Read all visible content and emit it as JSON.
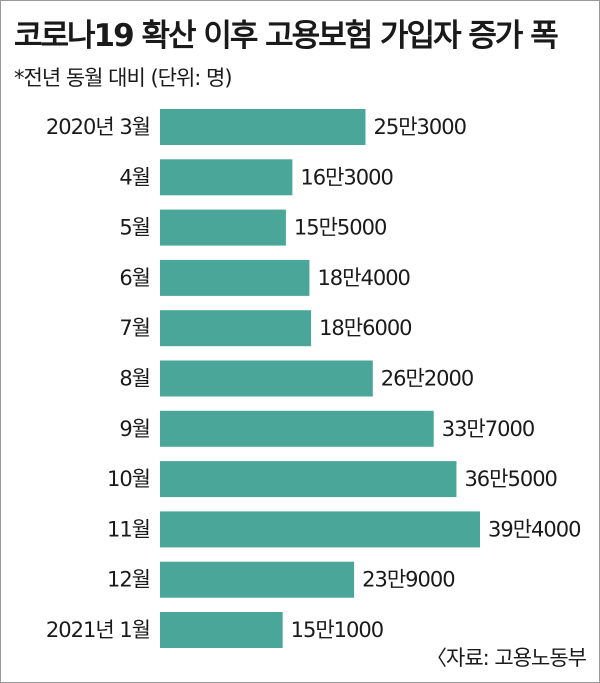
{
  "header": {
    "title": "코로나19 확산 이후 고용보험 가입자 증가 폭",
    "subtitle": "*전년 동월 대비 (단위: 명)",
    "source": "〈자료: 고용노동부"
  },
  "colors": {
    "bar": "#4aa698",
    "text": "#1a1a1a",
    "border": "#9a9a9a"
  },
  "chart_data": {
    "type": "bar",
    "orientation": "horizontal",
    "categories": [
      "2020년 3월",
      "4월",
      "5월",
      "6월",
      "7월",
      "8월",
      "9월",
      "10월",
      "11월",
      "12월",
      "2021년 1월"
    ],
    "values": [
      253000,
      163000,
      155000,
      184000,
      186000,
      262000,
      337000,
      365000,
      394000,
      239000,
      151000
    ],
    "value_labels": [
      "25만3000",
      "16만3000",
      "15만5000",
      "18만4000",
      "18만6000",
      "26만2000",
      "33만7000",
      "36만5000",
      "39만4000",
      "23만9000",
      "15만1000"
    ],
    "title": "코로나19 확산 이후 고용보험 가입자 증가 폭",
    "xlabel": "",
    "ylabel": "",
    "grid": false,
    "legend": "none"
  }
}
